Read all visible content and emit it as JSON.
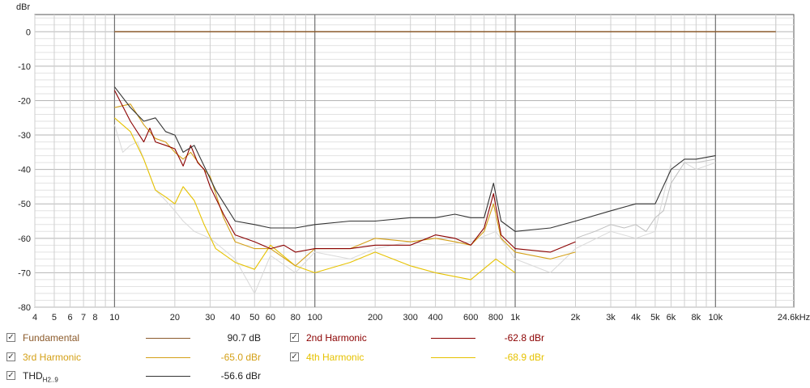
{
  "chart_data": {
    "type": "line",
    "ylabel": "dBr",
    "xlabel": "",
    "x_scale": "log",
    "xlim": [
      4,
      24600
    ],
    "ylim": [
      -80,
      5
    ],
    "grid": true,
    "y_ticks": [
      0,
      -10,
      -20,
      -30,
      -40,
      -50,
      -60,
      -70,
      -80
    ],
    "x_ticks": [
      {
        "v": 4,
        "label": "4"
      },
      {
        "v": 5,
        "label": "5"
      },
      {
        "v": 6,
        "label": "6"
      },
      {
        "v": 7,
        "label": "7"
      },
      {
        "v": 8,
        "label": "8"
      },
      {
        "v": 10,
        "label": "10"
      },
      {
        "v": 20,
        "label": "20"
      },
      {
        "v": 30,
        "label": "30"
      },
      {
        "v": 40,
        "label": "40"
      },
      {
        "v": 50,
        "label": "50"
      },
      {
        "v": 60,
        "label": "60"
      },
      {
        "v": 80,
        "label": "80"
      },
      {
        "v": 100,
        "label": "100"
      },
      {
        "v": 200,
        "label": "200"
      },
      {
        "v": 300,
        "label": "300"
      },
      {
        "v": 400,
        "label": "400"
      },
      {
        "v": 600,
        "label": "600"
      },
      {
        "v": 800,
        "label": "800"
      },
      {
        "v": 1000,
        "label": "1k"
      },
      {
        "v": 2000,
        "label": "2k"
      },
      {
        "v": 3000,
        "label": "3k"
      },
      {
        "v": 4000,
        "label": "4k"
      },
      {
        "v": 5000,
        "label": "5k"
      },
      {
        "v": 6000,
        "label": "6k"
      },
      {
        "v": 8000,
        "label": "8k"
      },
      {
        "v": 10000,
        "label": "10k"
      },
      {
        "v": 24600,
        "label": "24.6kHz"
      }
    ],
    "series": [
      {
        "name": "Fundamental",
        "value": "90.7 dB",
        "color": "#8b5a2b",
        "x": [
          10,
          20000
        ],
        "y": [
          0,
          0
        ]
      },
      {
        "name": "2nd Harmonic",
        "value": "-62.8 dBr",
        "color": "#8b0000",
        "x": [
          10,
          12,
          14,
          15,
          16,
          18,
          20,
          22,
          24,
          26,
          28,
          30,
          35,
          40,
          50,
          60,
          70,
          80,
          100,
          150,
          200,
          300,
          400,
          500,
          600,
          700,
          780,
          850,
          1000,
          1500,
          2000
        ],
        "y": [
          -17,
          -26,
          -32,
          -28,
          -32,
          -33,
          -34,
          -39,
          -33,
          -38,
          -40,
          -45,
          -53,
          -59,
          -61,
          -63,
          -62,
          -64,
          -63,
          -63,
          -62,
          -62,
          -59,
          -60,
          -62,
          -57,
          -47,
          -59,
          -63,
          -64,
          -61
        ]
      },
      {
        "name": "3rd Harmonic",
        "value": "-65.0 dBr",
        "color": "#d4a017",
        "x": [
          10,
          12,
          14,
          16,
          18,
          20,
          22,
          24,
          27,
          30,
          35,
          40,
          50,
          60,
          80,
          100,
          150,
          200,
          300,
          400,
          500,
          600,
          700,
          780,
          850,
          1000,
          1500,
          2000
        ],
        "y": [
          -22,
          -21,
          -27,
          -31,
          -32,
          -35,
          -37,
          -35,
          -39,
          -42,
          -54,
          -61,
          -63,
          -63,
          -68,
          -63,
          -63,
          -60,
          -61,
          -60,
          -61,
          -62,
          -58,
          -50,
          -60,
          -64,
          -66,
          -64
        ]
      },
      {
        "name": "4th Harmonic",
        "value": "-68.9 dBr",
        "color": "#e6c200",
        "x": [
          10,
          12,
          14,
          16,
          18,
          20,
          22,
          25,
          28,
          32,
          40,
          50,
          60,
          80,
          100,
          150,
          200,
          300,
          400,
          600,
          800,
          1000
        ],
        "y": [
          -25,
          -29,
          -37,
          -46,
          -48,
          -50,
          -45,
          -49,
          -56,
          -63,
          -67,
          -69,
          -62,
          -68,
          -70,
          -67,
          -64,
          -68,
          -70,
          -72,
          -66,
          -70
        ]
      },
      {
        "name": "THD H2..9",
        "value": "-56.6 dBr",
        "color": "#333333",
        "x": [
          10,
          12,
          14,
          16,
          18,
          20,
          22,
          25,
          28,
          32,
          40,
          50,
          60,
          80,
          100,
          150,
          200,
          300,
          400,
          500,
          600,
          700,
          780,
          850,
          1000,
          1500,
          2000,
          3000,
          4000,
          5000,
          6000,
          7000,
          8000,
          10000
        ],
        "y": [
          -16,
          -22,
          -26,
          -25,
          -29,
          -30,
          -35,
          -33,
          -39,
          -46,
          -55,
          -56,
          -57,
          -57,
          -56,
          -55,
          -55,
          -54,
          -54,
          -53,
          -54,
          -54,
          -44,
          -55,
          -58,
          -57,
          -55,
          -52,
          -50,
          -50,
          -40,
          -37,
          -37,
          -36
        ]
      }
    ],
    "extra_traces": [
      {
        "color": "#d9d9d9",
        "x": [
          10,
          11,
          12,
          13,
          14,
          16,
          18,
          20,
          22,
          25,
          30,
          40,
          50,
          60,
          80,
          100,
          150,
          200,
          300,
          400,
          600,
          800,
          1000,
          1500,
          2000,
          3000,
          4000,
          5000,
          6000,
          7000,
          8000,
          10000
        ],
        "y": [
          -27,
          -35,
          -33,
          -32,
          -37,
          -46,
          -49,
          -52,
          -55,
          -58,
          -60,
          -66,
          -76,
          -65,
          -70,
          -64,
          -66,
          -63,
          -61,
          -62,
          -61,
          -58,
          -66,
          -70,
          -63,
          -58,
          -60,
          -58,
          -38,
          -38,
          -40,
          -38
        ]
      },
      {
        "color": "#bfbfbf",
        "x": [
          2000,
          2500,
          3000,
          3500,
          4000,
          4500,
          5000,
          5500,
          6000,
          7000,
          8000,
          10000
        ],
        "y": [
          -60,
          -58,
          -56,
          -57,
          -56,
          -58,
          -54,
          -52,
          -44,
          -38,
          -38,
          -37
        ]
      }
    ]
  },
  "legend": {
    "fundamental_label": "Fundamental",
    "fundamental_value": "90.7 dB",
    "h2_label": "2nd Harmonic",
    "h2_value": "-62.8 dBr",
    "h3_label": "3rd Harmonic",
    "h3_value": "-65.0 dBr",
    "h4_label": "4th Harmonic",
    "h4_value": "-68.9 dBr",
    "thd_label": "THD",
    "thd_sub": "H2..9",
    "thd_value": "-56.6 dBr",
    "checked_glyph": "✓"
  }
}
